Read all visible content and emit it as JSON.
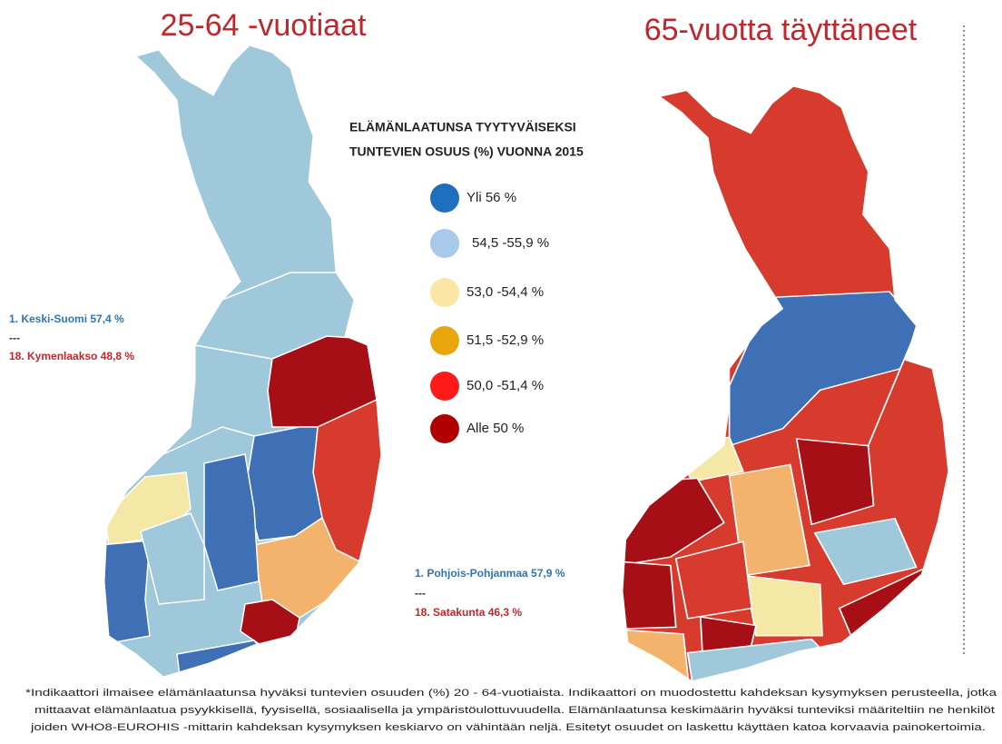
{
  "left_map": {
    "title": "25-64 -vuotiaat",
    "annotation": [
      "1.    Keski-Suomi 57,4 %",
      "---",
      "18. Kymenlaakso 48,8 %"
    ]
  },
  "right_map": {
    "title": "65-vuotta täyttäneet",
    "annotation": [
      "1.    Pohjois-Pohjanmaa 57,9 %",
      "---",
      "18. Satakunta 46,3 %"
    ]
  },
  "legend": {
    "title": [
      "ELÄMÄNLAATUNSA TYYTYVÄISEKSI",
      "TUNTEVIEN OSUUS (%) VUONNA 2015"
    ],
    "items": [
      {
        "label": "Yli 56 %",
        "color": "#1f6fc0"
      },
      {
        "label": "54,5 -55,9 %",
        "color": "#a9c9ea"
      },
      {
        "label": "53,0 -54,4 %",
        "color": "#fbe6a6"
      },
      {
        "label": "51,5 -52,9 %",
        "color": "#e8a50c"
      },
      {
        "label": "50,0 -51,4 %",
        "color": "#ff1a1a"
      },
      {
        "label": "Alle 50 %",
        "color": "#b00000"
      }
    ]
  },
  "footnote": [
    "*Indikaattori ilmaisee elämänlaatunsa hyväksi tuntevien osuuden (%) 20 - 64-vuotiaista. Indikaattori on muodostettu kahdeksan kysymyksen perusteella, jotka",
    "mittaavat elämänlaatua psyykkisellä, fyysisellä, sosiaalisella ja ympäristöulottuvuudella. Elämänlaatunsa keskimäärin hyväksi tunteviksi määriteltiin ne henkilöt",
    "joiden WHO8-EUROHIS -mittarin kahdeksan kysymyksen keskiarvo on vähintään neljä. Esitetyt osuudet on laskettu käyttäen katoa korvaavia painokertoimia."
  ]
}
